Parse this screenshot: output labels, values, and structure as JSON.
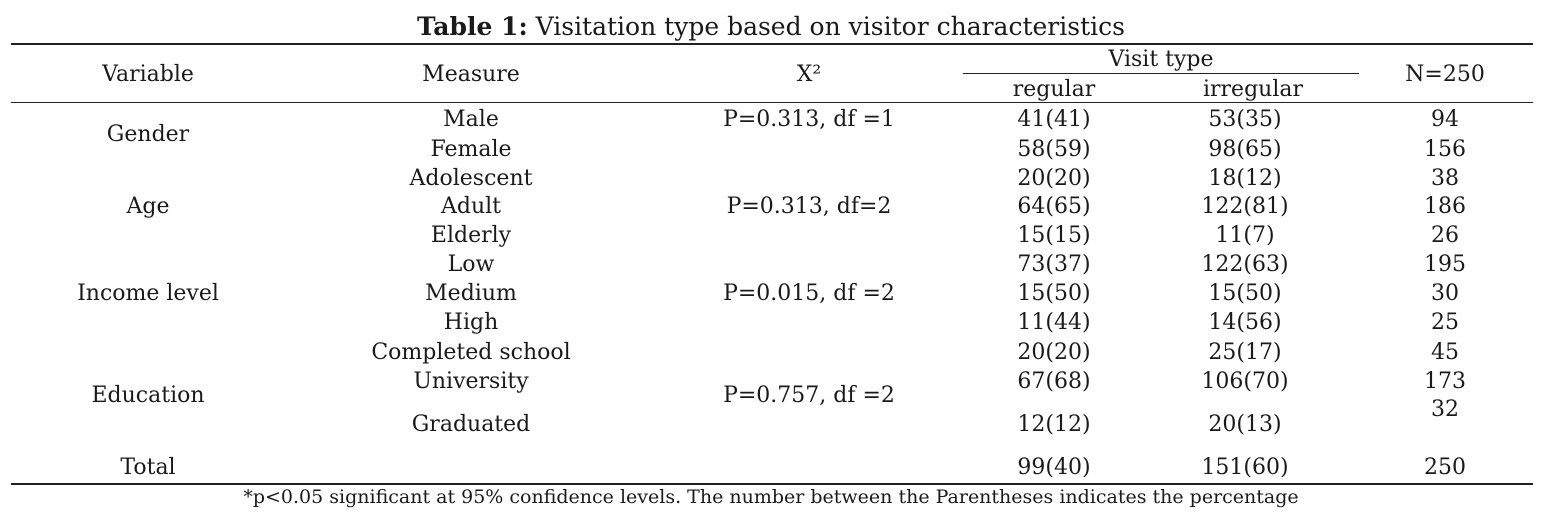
{
  "title": {
    "bold": "Table 1:",
    "text": " Visitation type based on visitor characteristics"
  },
  "headers": {
    "variable": "Variable",
    "measure": "Measure",
    "chi": "X²",
    "visit_type": "Visit type",
    "regular": "regular",
    "irregular": "irregular",
    "n": "N=250"
  },
  "rows": [
    {
      "measure": "Male",
      "chi": "P=0.313, df =1",
      "regular": "41(41)",
      "irregular": "53(35)",
      "n": "94"
    },
    {
      "measure": "Female",
      "regular": "58(59)",
      "irregular": "98(65)",
      "n": "156"
    },
    {
      "measure": "Adolescent",
      "regular": "20(20)",
      "irregular": "18(12)",
      "n": "38"
    },
    {
      "measure": "Adult",
      "chi": "P=0.313, df=2",
      "regular": "64(65)",
      "irregular": "122(81)",
      "n": "186"
    },
    {
      "measure": "Elderly",
      "regular": "15(15)",
      "irregular": "11(7)",
      "n": "26"
    },
    {
      "measure": "Low",
      "regular": "73(37)",
      "irregular": "122(63)",
      "n": "195"
    },
    {
      "measure": "Medium",
      "chi": "P=0.015, df =2",
      "regular": "15(50)",
      "irregular": "15(50)",
      "n": "30"
    },
    {
      "measure": "High",
      "regular": "11(44)",
      "irregular": "14(56)",
      "n": "25"
    },
    {
      "measure": "Completed school",
      "regular": "20(20)",
      "irregular": "25(17)",
      "n": "45"
    },
    {
      "measure": "University",
      "regular": "67(68)",
      "irregular": "106(70)",
      "n": "173"
    },
    {
      "measure": "Graduated",
      "regular": "12(12)",
      "irregular": "20(13)",
      "n": "32"
    }
  ],
  "variables": {
    "gender": "Gender",
    "age": "Age",
    "income": "Income level",
    "education": "Education",
    "education_chi": "P=0.757, df =2"
  },
  "total": {
    "label": "Total",
    "regular": "99(40)",
    "irregular": "151(60)",
    "n": "250"
  },
  "footnote": "*p<0.05 significant at 95% confidence levels. The number between the Parentheses indicates the percentage"
}
